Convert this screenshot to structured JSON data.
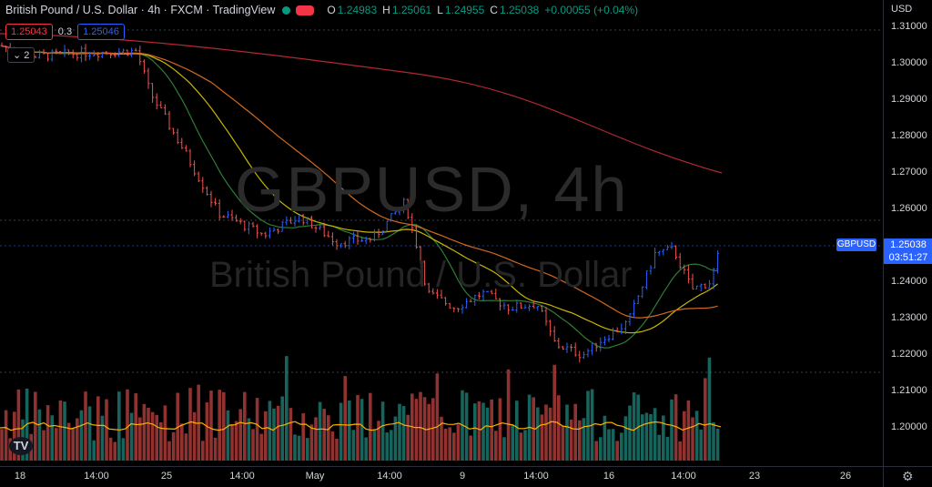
{
  "header": {
    "title": "British Pound / U.S. Dollar · 4h · FXCM · TradingView",
    "o_label": "O",
    "o": "1.24983",
    "h_label": "H",
    "h": "1.25061",
    "l_label": "L",
    "l": "1.24955",
    "c_label": "C",
    "c": "1.25038",
    "change": "+0.00055 (+0.04%)"
  },
  "trade": {
    "sell": "1.25043",
    "spread": "0.3",
    "buy": "1.25046"
  },
  "indicator_toggle": "⌄ 2",
  "watermark": {
    "symbol": "GBPUSD, 4h",
    "name": "British Pound / U.S. Dollar"
  },
  "axis": {
    "currency": "USD",
    "ticks": [
      "1.31000",
      "1.30000",
      "1.29000",
      "1.28000",
      "1.27000",
      "1.26000",
      "1.25000",
      "1.24000",
      "1.23000",
      "1.22000",
      "1.21000",
      "1.20000"
    ]
  },
  "price_badge": {
    "symbol": "GBPUSD",
    "price": "1.25038",
    "countdown": "03:51:27"
  },
  "time_axis": [
    "18",
    "14:00",
    "25",
    "14:00",
    "May",
    "14:00",
    "9",
    "14:00",
    "16",
    "14:00",
    "23",
    "26"
  ],
  "logo_icon": "tradingview-logo-icon",
  "settings_icon": "gear-icon",
  "colors": {
    "up": "#26a69a",
    "down": "#ef5350",
    "up_candle": "#2962ff",
    "down_candle": "#ef5350",
    "ma_slow": "#b22833",
    "ma_mid": "#d2691e",
    "ma_fast": "#c8b400",
    "ma_fastest": "#2e7d32",
    "vol_ma": "#ffb000"
  }
}
